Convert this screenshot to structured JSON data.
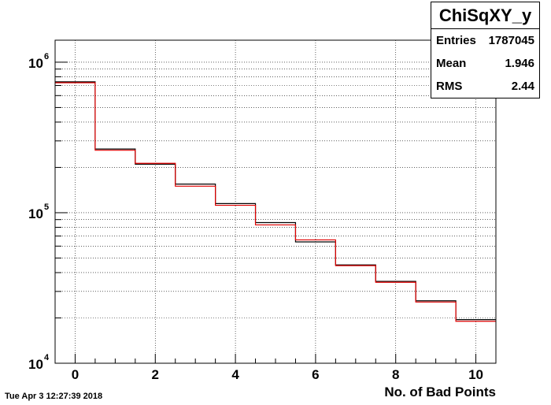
{
  "stats_box": {
    "title": "ChiSqXY_y",
    "rows": [
      {
        "label": "Entries",
        "value": "1787045"
      },
      {
        "label": "Mean",
        "value": "1.946"
      },
      {
        "label": "RMS",
        "value": "2.44"
      }
    ]
  },
  "timestamp": "Tue Apr  3 12:27:39 2018",
  "chart_data": {
    "type": "step-histogram",
    "xlabel": "No. of Bad Points",
    "ylabel": "",
    "log_y": true,
    "xlim": [
      -0.5,
      10.5
    ],
    "ylim": [
      10000,
      1400000
    ],
    "grid": true,
    "x_ticks": [
      "0",
      "2",
      "4",
      "6",
      "8",
      "10"
    ],
    "y_ticks": [
      {
        "base": "10",
        "exp": "4"
      },
      {
        "base": "10",
        "exp": "5"
      },
      {
        "base": "10",
        "exp": "6"
      }
    ],
    "bins": [
      0,
      1,
      2,
      3,
      4,
      5,
      6,
      7,
      8,
      9,
      10
    ],
    "series": [
      {
        "color": "#000000",
        "values": [
          740000,
          265000,
          210000,
          155000,
          115000,
          86000,
          64000,
          45000,
          35000,
          26000,
          19500
        ]
      },
      {
        "color": "#e00000",
        "values": [
          730000,
          260000,
          213000,
          150000,
          112000,
          83000,
          66000,
          44500,
          34500,
          25500,
          19000
        ]
      }
    ]
  }
}
